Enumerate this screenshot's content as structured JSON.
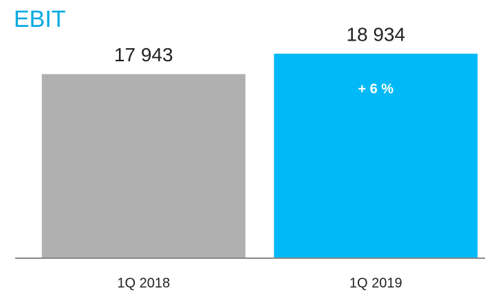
{
  "chart_data": {
    "type": "bar",
    "title": "EBIT",
    "categories": [
      "1Q 2018",
      "1Q 2019"
    ],
    "values": [
      17943,
      18934
    ],
    "value_labels": [
      "17 943",
      "18 934"
    ],
    "colors": [
      "#b0b0b0",
      "#00b9f6"
    ],
    "annotation": "+ 6 %",
    "ylim": [
      9000,
      19000
    ]
  }
}
